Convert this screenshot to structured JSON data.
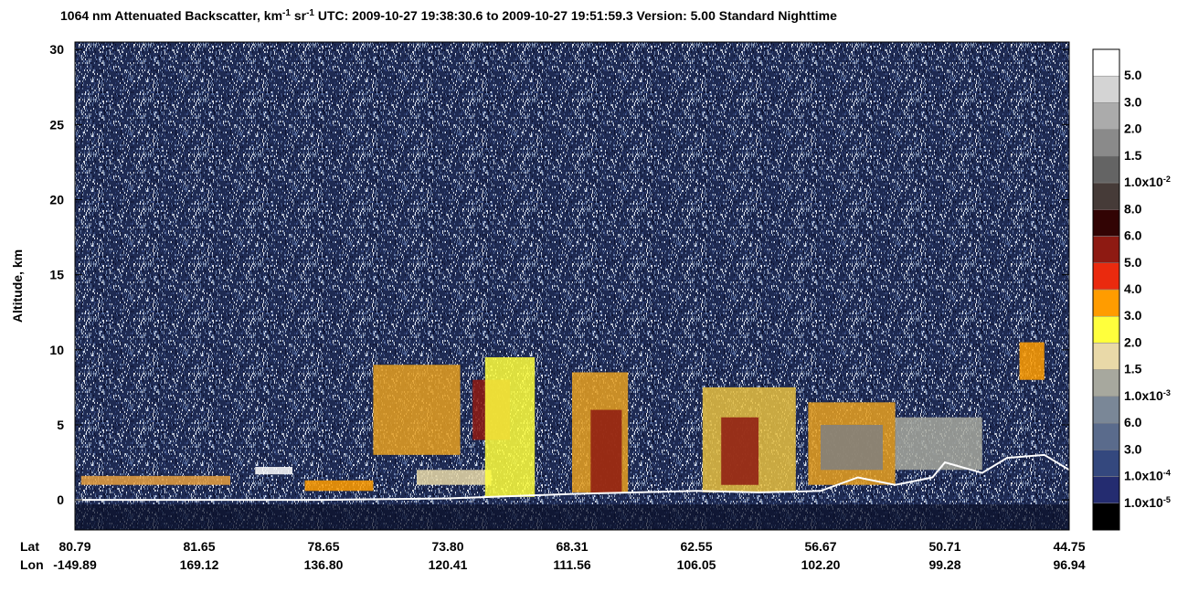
{
  "chart_data": {
    "type": "curtain",
    "title_parts": [
      {
        "text": "1064 nm Attenuated Backscatter, km"
      },
      {
        "text": "-1",
        "sup": true
      },
      {
        "text": " sr"
      },
      {
        "text": "-1",
        "sup": true
      },
      {
        "text": "     UTC:  2009-10-27 19:38:30.6  to  2009-10-27 19:51:59.3     Version: 5.00  Standard  Nighttime"
      }
    ],
    "y_label": "Altitude, km",
    "ylim": [
      -2,
      30.5
    ],
    "yticks": [
      0,
      5,
      10,
      15,
      20,
      25,
      30
    ],
    "xlim": [
      0,
      8
    ],
    "x_row_titles": [
      "Lat",
      "Lon"
    ],
    "lat_labels": [
      "80.79",
      "81.65",
      "78.65",
      "73.80",
      "68.31",
      "62.55",
      "56.67",
      "50.71",
      "44.75"
    ],
    "lon_labels": [
      "-149.89",
      "169.12",
      "136.80",
      "120.41",
      "111.56",
      "106.05",
      "102.20",
      "99.28",
      "96.94"
    ],
    "colorbar": {
      "colors": [
        "#ffffff",
        "#d4d4d4",
        "#ababab",
        "#8a8a8a",
        "#646464",
        "#463b38",
        "#320404",
        "#8e1a12",
        "#ea2a0e",
        "#ff9c00",
        "#ffff3c",
        "#e9d9a8",
        "#a7a89e",
        "#7a8797",
        "#5a6b8c",
        "#34487e",
        "#242c70",
        "#000000"
      ],
      "labels": [
        {
          "label": "5.0"
        },
        {
          "label": "3.0"
        },
        {
          "label": "2.0"
        },
        {
          "label": "1.5"
        },
        {
          "label": "1.0x10",
          "exponent": "-2"
        },
        {
          "label": "8.0"
        },
        {
          "label": "6.0"
        },
        {
          "label": "5.0"
        },
        {
          "label": "4.0"
        },
        {
          "label": "3.0"
        },
        {
          "label": "2.0"
        },
        {
          "label": "1.5"
        },
        {
          "label": "1.0x10",
          "exponent": "-3"
        },
        {
          "label": "6.0"
        },
        {
          "label": "3.0"
        },
        {
          "label": "1.0x10",
          "exponent": "-4"
        },
        {
          "label": "1.0x10",
          "exponent": "-5"
        }
      ]
    },
    "features": [
      {
        "x0": 0.05,
        "x1": 1.25,
        "base": 1.0,
        "top": 1.6,
        "color": "#e8a040"
      },
      {
        "x0": 1.45,
        "x1": 1.75,
        "base": 1.7,
        "top": 2.2,
        "color": "#ffffff"
      },
      {
        "x0": 1.85,
        "x1": 2.4,
        "base": 0.6,
        "top": 1.3,
        "color": "#ff9c00"
      },
      {
        "x0": 2.75,
        "x1": 3.35,
        "base": 1.0,
        "top": 2.0,
        "color": "#e9d9a8"
      },
      {
        "x0": 2.4,
        "x1": 3.1,
        "base": 3.0,
        "top": 9.0,
        "color": "#e8a020"
      },
      {
        "x0": 3.2,
        "x1": 3.5,
        "base": 4.0,
        "top": 8.0,
        "color": "#8e1a12"
      },
      {
        "x0": 3.3,
        "x1": 3.7,
        "base": 0.2,
        "top": 9.5,
        "color": "#ffff3c"
      },
      {
        "x0": 4.0,
        "x1": 4.45,
        "base": 0.5,
        "top": 8.5,
        "color": "#e8a020"
      },
      {
        "x0": 4.15,
        "x1": 4.4,
        "base": 0.5,
        "top": 6.0,
        "color": "#8e1a12"
      },
      {
        "x0": 5.05,
        "x1": 5.8,
        "base": 0.5,
        "top": 7.5,
        "color": "#e8c040"
      },
      {
        "x0": 5.2,
        "x1": 5.5,
        "base": 1.0,
        "top": 5.5,
        "color": "#8e1a12"
      },
      {
        "x0": 5.9,
        "x1": 6.6,
        "base": 1.0,
        "top": 6.5,
        "color": "#e8a020"
      },
      {
        "x0": 6.0,
        "x1": 6.5,
        "base": 2.0,
        "top": 5.0,
        "color": "#808080"
      },
      {
        "x0": 6.6,
        "x1": 7.3,
        "base": 2.0,
        "top": 5.5,
        "color": "#a7a89e"
      },
      {
        "x0": 7.6,
        "x1": 7.8,
        "base": 8.0,
        "top": 10.5,
        "color": "#ff9c00"
      }
    ],
    "series": [
      {
        "name": "Surface",
        "color": "#ffffff",
        "x": [
          0,
          1,
          2,
          3,
          4,
          5,
          5.5,
          6,
          6.3,
          6.6,
          6.9,
          7,
          7.3,
          7.5,
          7.8,
          8
        ],
        "values": [
          0,
          0,
          0,
          0.1,
          0.4,
          0.6,
          0.5,
          0.6,
          1.5,
          1.0,
          1.5,
          2.5,
          1.8,
          2.8,
          3.0,
          2.0
        ]
      }
    ]
  }
}
